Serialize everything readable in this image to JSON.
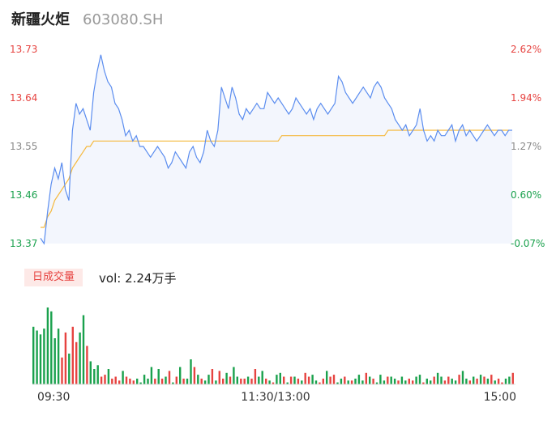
{
  "header": {
    "name": "新疆火炬",
    "code": "603080.SH"
  },
  "volume_panel": {
    "tag": "日成交量",
    "vol_prefix": "vol:",
    "vol_value": "2.24万手"
  },
  "colors": {
    "price": "#5b8def",
    "avg": "#f5b93e",
    "up": "#e64340",
    "down": "#1aa14d",
    "muted": "#888888"
  },
  "chart_data": [
    {
      "type": "line",
      "title": "",
      "ylim": [
        13.37,
        13.73
      ],
      "y_ticks_left": [
        "13.73",
        "13.64",
        "13.55",
        "13.46",
        "13.37"
      ],
      "y_ticks_right": [
        "2.62%",
        "1.94%",
        "1.27%",
        "0.60%",
        "-0.07%"
      ],
      "x_ticks": [
        "09:30",
        "11:30/13:00",
        "15:00"
      ],
      "series": [
        {
          "key": "price",
          "values": [
            13.38,
            13.37,
            13.43,
            13.48,
            13.51,
            13.49,
            13.52,
            13.47,
            13.45,
            13.58,
            13.63,
            13.61,
            13.62,
            13.6,
            13.58,
            13.65,
            13.69,
            13.72,
            13.69,
            13.67,
            13.66,
            13.63,
            13.62,
            13.6,
            13.57,
            13.58,
            13.56,
            13.57,
            13.55,
            13.55,
            13.54,
            13.53,
            13.54,
            13.55,
            13.54,
            13.53,
            13.51,
            13.52,
            13.54,
            13.53,
            13.52,
            13.51,
            13.54,
            13.55,
            13.53,
            13.52,
            13.54,
            13.58,
            13.56,
            13.55,
            13.58,
            13.66,
            13.64,
            13.62,
            13.66,
            13.64,
            13.61,
            13.6,
            13.62,
            13.61,
            13.62,
            13.63,
            13.62,
            13.62,
            13.65,
            13.64,
            13.63,
            13.64,
            13.63,
            13.62,
            13.61,
            13.62,
            13.64,
            13.63,
            13.62,
            13.61,
            13.62,
            13.6,
            13.62,
            13.63,
            13.62,
            13.61,
            13.62,
            13.63,
            13.68,
            13.67,
            13.65,
            13.64,
            13.63,
            13.64,
            13.65,
            13.66,
            13.65,
            13.64,
            13.66,
            13.67,
            13.66,
            13.64,
            13.63,
            13.62,
            13.6,
            13.59,
            13.58,
            13.59,
            13.57,
            13.58,
            13.59,
            13.62,
            13.58,
            13.56,
            13.57,
            13.56,
            13.58,
            13.57,
            13.57,
            13.58,
            13.59,
            13.56,
            13.58,
            13.59,
            13.57,
            13.58,
            13.57,
            13.56,
            13.57,
            13.58,
            13.59,
            13.58,
            13.57,
            13.58,
            13.58,
            13.57,
            13.58,
            13.58
          ],
          "cap_note": ""
        },
        {
          "key": "average",
          "values": [
            13.4,
            13.4,
            13.42,
            13.43,
            13.45,
            13.46,
            13.47,
            13.48,
            13.49,
            13.51,
            13.52,
            13.53,
            13.54,
            13.55,
            13.55,
            13.56,
            13.56,
            13.56,
            13.56,
            13.56,
            13.56,
            13.56,
            13.56,
            13.56,
            13.56,
            13.56,
            13.56,
            13.56,
            13.56,
            13.56,
            13.56,
            13.56,
            13.56,
            13.56,
            13.56,
            13.56,
            13.56,
            13.56,
            13.56,
            13.56,
            13.56,
            13.56,
            13.56,
            13.56,
            13.56,
            13.56,
            13.56,
            13.56,
            13.56,
            13.56,
            13.56,
            13.56,
            13.56,
            13.56,
            13.56,
            13.56,
            13.56,
            13.56,
            13.56,
            13.56,
            13.56,
            13.56,
            13.56,
            13.56,
            13.56,
            13.56,
            13.56,
            13.56,
            13.57,
            13.57,
            13.57,
            13.57,
            13.57,
            13.57,
            13.57,
            13.57,
            13.57,
            13.57,
            13.57,
            13.57,
            13.57,
            13.57,
            13.57,
            13.57,
            13.57,
            13.57,
            13.57,
            13.57,
            13.57,
            13.57,
            13.57,
            13.57,
            13.57,
            13.57,
            13.57,
            13.57,
            13.57,
            13.57,
            13.58,
            13.58,
            13.58,
            13.58,
            13.58,
            13.58,
            13.58,
            13.58,
            13.58,
            13.58,
            13.58,
            13.58,
            13.58,
            13.58,
            13.58,
            13.58,
            13.58,
            13.58,
            13.58,
            13.58,
            13.58,
            13.58,
            13.58,
            13.58,
            13.58,
            13.58,
            13.58,
            13.58,
            13.58,
            13.58,
            13.58,
            13.58,
            13.58,
            13.58,
            13.58
          ]
        }
      ]
    },
    {
      "type": "bar",
      "title": "",
      "values": [
        30,
        28,
        26,
        29,
        40,
        38,
        24,
        29,
        14,
        27,
        16,
        30,
        22,
        27,
        36,
        20,
        12,
        8,
        10,
        4,
        5,
        8,
        3,
        4,
        2,
        7,
        4,
        3,
        2,
        3,
        1,
        5,
        3,
        9,
        3,
        8,
        3,
        4,
        7,
        1,
        4,
        9,
        3,
        3,
        13,
        9,
        5,
        3,
        2,
        5,
        8,
        2,
        7,
        3,
        6,
        4,
        9,
        4,
        3,
        3,
        4,
        3,
        8,
        4,
        7,
        3,
        2,
        1,
        5,
        6,
        4,
        1,
        4,
        4,
        3,
        2,
        6,
        4,
        5,
        2,
        1,
        3,
        7,
        4,
        5,
        1,
        3,
        4,
        2,
        2,
        3,
        5,
        2,
        6,
        4,
        3,
        1,
        5,
        2,
        4,
        4,
        3,
        2,
        4,
        2,
        3,
        2,
        4,
        5,
        1,
        3,
        2,
        4,
        6,
        4,
        2,
        4,
        3,
        2,
        5,
        7,
        3,
        2,
        4,
        3,
        5,
        4,
        3,
        5,
        2,
        3,
        1,
        3,
        4,
        6
      ],
      "colors": [
        "down",
        "down",
        "down",
        "down",
        "down",
        "down",
        "down",
        "down",
        "up",
        "up",
        "down",
        "up",
        "up",
        "down",
        "down",
        "up",
        "down",
        "down",
        "down",
        "up",
        "up",
        "down",
        "up",
        "up",
        "up",
        "down",
        "up",
        "up",
        "up",
        "down",
        "down",
        "down",
        "down",
        "down",
        "up",
        "down",
        "up",
        "down",
        "up",
        "down",
        "up",
        "down",
        "up",
        "down",
        "down",
        "up",
        "down",
        "up",
        "down",
        "down",
        "up",
        "down",
        "up",
        "up",
        "down",
        "up",
        "down",
        "down",
        "up",
        "up",
        "down",
        "up",
        "up",
        "down",
        "down",
        "up",
        "down",
        "up",
        "down",
        "down",
        "up",
        "down",
        "up",
        "down",
        "up",
        "down",
        "up",
        "up",
        "down",
        "down",
        "up",
        "up",
        "down",
        "up",
        "up",
        "down",
        "down",
        "up",
        "down",
        "up",
        "down",
        "down",
        "down",
        "up",
        "down",
        "up",
        "down",
        "down",
        "down",
        "up",
        "down",
        "down",
        "up",
        "down",
        "down",
        "up",
        "up",
        "down",
        "down",
        "up",
        "down",
        "down",
        "up",
        "down",
        "down",
        "up",
        "up",
        "down",
        "down",
        "up",
        "down",
        "down",
        "up",
        "down",
        "up",
        "down",
        "up",
        "down",
        "up",
        "down",
        "up",
        "up",
        "down",
        "down",
        "up"
      ]
    }
  ]
}
